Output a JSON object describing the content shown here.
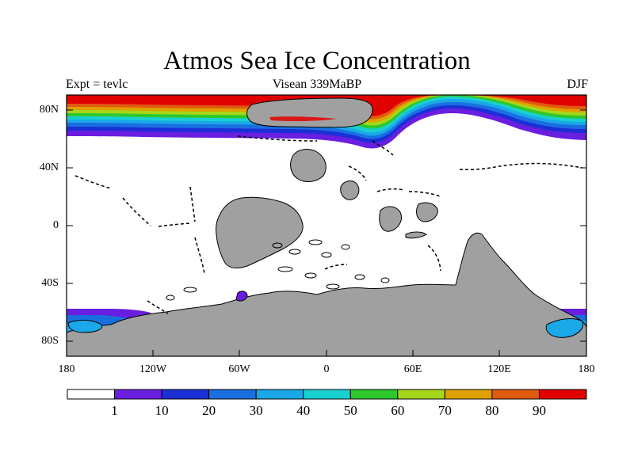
{
  "title": "Atmos Sea Ice Concentration",
  "subtitle_left": "Expt = tevlc",
  "subtitle_center": "Visean 339MaBP",
  "subtitle_right": "DJF",
  "lat_ticks": [
    "80N",
    "40N",
    "0",
    "40S",
    "80S"
  ],
  "lon_ticks": [
    "180",
    "120W",
    "60W",
    "0",
    "60E",
    "120E",
    "180"
  ],
  "colorbar": {
    "labels": [
      "1",
      "10",
      "20",
      "30",
      "40",
      "50",
      "60",
      "70",
      "80",
      "90"
    ],
    "colors": [
      "#ffffff",
      "#6a1ee0",
      "#1b2fd6",
      "#1a6fe0",
      "#1aa8e8",
      "#19d0d0",
      "#2ec82e",
      "#a6d61a",
      "#e0a000",
      "#e05a10",
      "#e00000"
    ]
  },
  "colors": {
    "land": "#a0a0a0",
    "ocean": "#ffffff",
    "ice_max": "#e00000"
  }
}
